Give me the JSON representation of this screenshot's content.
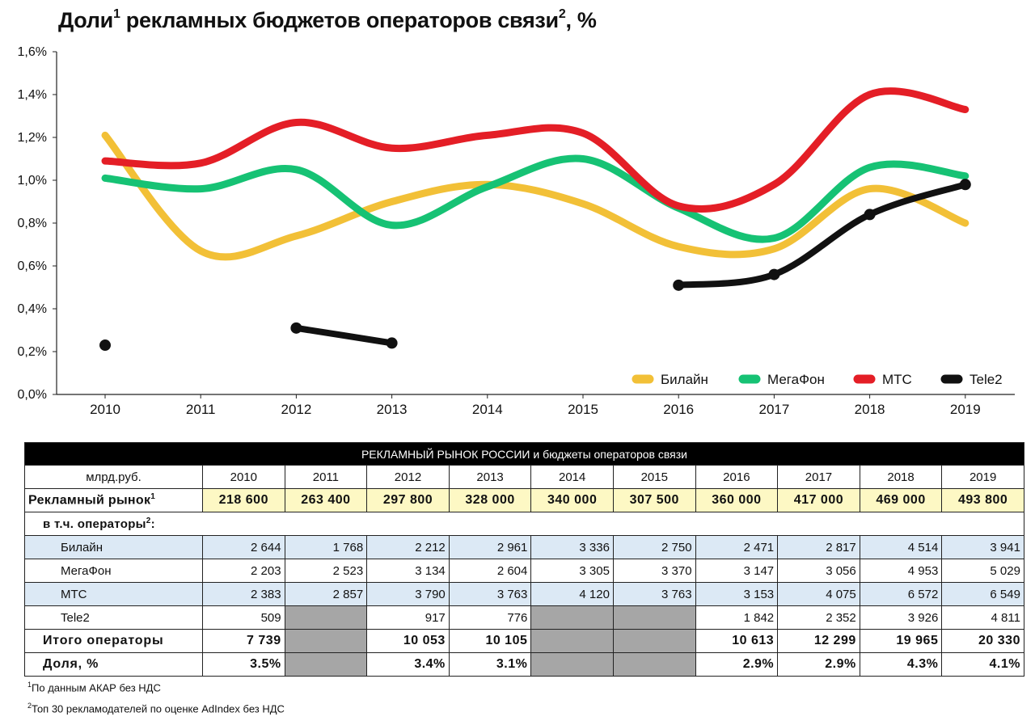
{
  "title": {
    "text": "Доли",
    "sup1": "1",
    "text2": " рекламных бюджетов операторов связи",
    "sup2": "2",
    "text3": ", %"
  },
  "chart_data": {
    "type": "line",
    "x": [
      "2010",
      "2011",
      "2012",
      "2013",
      "2014",
      "2015",
      "2016",
      "2017",
      "2018",
      "2019"
    ],
    "ylim": [
      0,
      1.6
    ],
    "yticks": [
      "0,0%",
      "0,2%",
      "0,4%",
      "0,6%",
      "0,8%",
      "1,0%",
      "1,2%",
      "1,4%",
      "1,6%"
    ],
    "legend_position": "bottom-right",
    "series": [
      {
        "name": "Билайн",
        "color": "#f2c037",
        "values": [
          1.21,
          0.67,
          0.74,
          0.9,
          0.98,
          0.89,
          0.69,
          0.68,
          0.96,
          0.8
        ]
      },
      {
        "name": "МегаФон",
        "color": "#16c274",
        "values": [
          1.01,
          0.96,
          1.05,
          0.79,
          0.97,
          1.1,
          0.87,
          0.73,
          1.06,
          1.02
        ]
      },
      {
        "name": "МТС",
        "color": "#e41e26",
        "values": [
          1.09,
          1.08,
          1.27,
          1.15,
          1.21,
          1.22,
          0.88,
          0.98,
          1.4,
          1.33
        ]
      },
      {
        "name": "Tele2",
        "color": "#111111",
        "values": [
          0.23,
          null,
          0.31,
          0.24,
          null,
          null,
          0.51,
          0.56,
          0.84,
          0.98
        ]
      }
    ]
  },
  "table": {
    "header": "РЕКЛАМНЫЙ РЫНОК РОССИИ и бюджеты операторов связи",
    "unit_label": "млрд.руб.",
    "years": [
      "2010",
      "2011",
      "2012",
      "2013",
      "2014",
      "2015",
      "2016",
      "2017",
      "2018",
      "2019"
    ],
    "market": {
      "label": "Рекламный рынок",
      "sup": "1",
      "values": [
        "218 600",
        "263 400",
        "297 800",
        "328 000",
        "340 000",
        "307 500",
        "360 000",
        "417 000",
        "469 000",
        "493 800"
      ]
    },
    "operators_label": {
      "text": "в т.ч. операторы",
      "sup": "2",
      "suffix": ":"
    },
    "operators": [
      {
        "name": "Билайн",
        "values": [
          "2 644",
          "1 768",
          "2 212",
          "2 961",
          "3 336",
          "2 750",
          "2 471",
          "2 817",
          "4 514",
          "3 941"
        ]
      },
      {
        "name": "МегаФон",
        "values": [
          "2 203",
          "2 523",
          "3 134",
          "2 604",
          "3 305",
          "3 370",
          "3 147",
          "3 056",
          "4 953",
          "5 029"
        ]
      },
      {
        "name": "МТС",
        "values": [
          "2 383",
          "2 857",
          "3 790",
          "3 763",
          "4 120",
          "3 763",
          "3 153",
          "4 075",
          "6 572",
          "6 549"
        ]
      },
      {
        "name": "Tele2",
        "values": [
          "509",
          "",
          "917",
          "776",
          "",
          "",
          "1 842",
          "2 352",
          "3 926",
          "4 811"
        ]
      }
    ],
    "total": {
      "label": "Итого операторы",
      "values": [
        "7 739",
        "",
        "10 053",
        "10 105",
        "",
        "",
        "10 613",
        "12 299",
        "19 965",
        "20 330"
      ]
    },
    "share": {
      "label": "Доля, %",
      "values": [
        "3.5%",
        "",
        "3.4%",
        "3.1%",
        "",
        "",
        "2.9%",
        "2.9%",
        "4.3%",
        "4.1%"
      ]
    }
  },
  "footnotes": [
    {
      "sup": "1",
      "text": "По данным АКАР без НДС"
    },
    {
      "sup": "2",
      "text": "Топ 30 рекламодателей по оценке AdIndex без НДС"
    }
  ]
}
